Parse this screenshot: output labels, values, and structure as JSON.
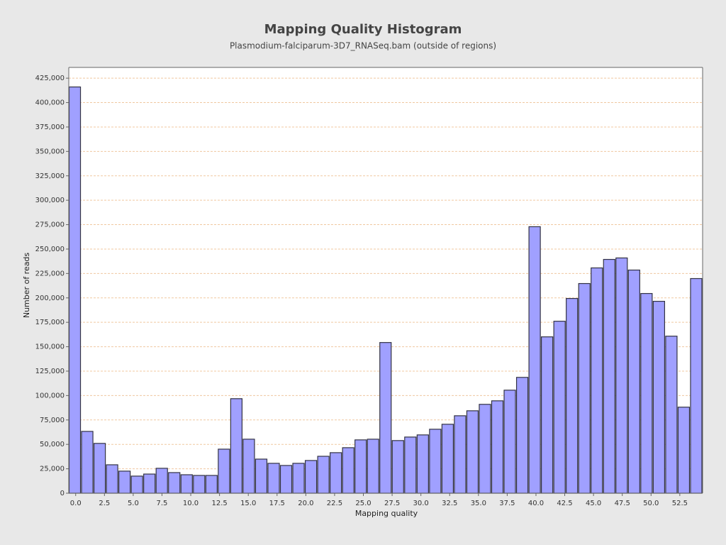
{
  "chart_data": {
    "type": "histogram",
    "title": "Mapping Quality Histogram",
    "subtitle": "Plasmodium-falciparum-3D7_RNASeq.bam (outside of regions)",
    "x_label": "Mapping quality",
    "y_label": "Number of reads",
    "color": "#a0a0ff",
    "grid": true,
    "bins": [
      -0.6,
      0.48,
      1.56,
      2.64,
      3.72,
      4.8,
      5.88,
      6.96,
      8.04,
      9.12,
      10.2,
      11.28,
      12.36,
      13.44,
      14.52,
      15.6,
      16.68,
      17.76,
      18.84,
      19.92,
      21.0,
      22.08,
      23.16,
      24.24,
      25.32,
      26.4,
      27.48,
      28.56,
      29.64,
      30.72,
      31.8,
      32.88,
      33.96,
      35.04,
      36.12,
      37.2,
      38.28,
      39.36,
      40.44,
      41.52,
      42.6,
      43.68,
      44.76,
      45.84,
      46.92,
      48.0,
      49.08,
      50.16,
      51.24,
      52.32,
      53.4,
      54.48
    ],
    "values": [
      416000,
      63300,
      51000,
      29100,
      22600,
      17500,
      19600,
      25500,
      21100,
      18900,
      18200,
      18200,
      45100,
      96800,
      55300,
      34900,
      30600,
      28400,
      30600,
      33500,
      37800,
      41500,
      46600,
      54600,
      55300,
      154300,
      53900,
      57500,
      59700,
      65500,
      70600,
      79300,
      84400,
      91000,
      94600,
      105500,
      118600,
      272900,
      160100,
      176100,
      199400,
      214700,
      230700,
      239400,
      240900,
      228500,
      204500,
      196500,
      160800,
      88100,
      219800
    ],
    "xlim": [
      -0.6,
      54.48
    ],
    "ylim": [
      0,
      436000
    ],
    "xticks": [
      {
        "value": 0,
        "label": "0.0"
      },
      2.5,
      {
        "value": 5,
        "label": "5.0"
      },
      7.5,
      {
        "value": 10,
        "label": "10.0"
      },
      12.5,
      {
        "value": 15,
        "label": "15.0"
      },
      17.5,
      {
        "value": 20,
        "label": "20.0"
      },
      22.5,
      {
        "value": 25,
        "label": "25.0"
      },
      27.5,
      {
        "value": 30,
        "label": "30.0"
      },
      32.5,
      {
        "value": 35,
        "label": "35.0"
      },
      37.5,
      {
        "value": 40,
        "label": "40.0"
      },
      42.5,
      {
        "value": 45,
        "label": "45.0"
      },
      47.5,
      {
        "value": 50,
        "label": "50.0"
      },
      52.5
    ],
    "yticks": [
      0,
      {
        "value": 25000,
        "label": "25,000"
      },
      {
        "value": 50000,
        "label": "50,000"
      },
      {
        "value": 75000,
        "label": "75,000"
      },
      {
        "value": 100000,
        "label": "100,000"
      },
      {
        "value": 125000,
        "label": "125,000"
      },
      {
        "value": 150000,
        "label": "150,000"
      },
      {
        "value": 175000,
        "label": "175,000"
      },
      {
        "value": 200000,
        "label": "200,000"
      },
      {
        "value": 225000,
        "label": "225,000"
      },
      {
        "value": 250000,
        "label": "250,000"
      },
      {
        "value": 275000,
        "label": "275,000"
      },
      {
        "value": 300000,
        "label": "300,000"
      },
      {
        "value": 325000,
        "label": "325,000"
      },
      {
        "value": 350000,
        "label": "350,000"
      },
      {
        "value": 375000,
        "label": "375,000"
      },
      {
        "value": 400000,
        "label": "400,000"
      },
      {
        "value": 425000,
        "label": "425,000"
      }
    ]
  }
}
